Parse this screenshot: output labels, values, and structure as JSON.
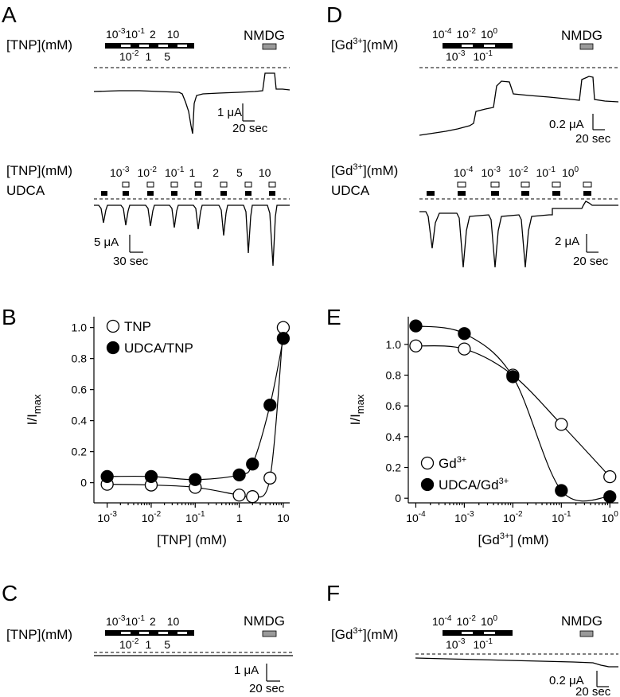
{
  "panels": {
    "A": {
      "letter": "A",
      "label_top": "[TNP](mM)",
      "upper_concs": [
        "10",
        "-3",
        "10",
        "-1",
        "2",
        "10"
      ],
      "lower_concs": [
        "10",
        "-2",
        "1",
        "5"
      ],
      "nmdg": "NMDG",
      "scale_amp": "1 μA",
      "scale_time": "20 sec",
      "label_bottom1": "[TNP](mM)",
      "label_bottom2": "UDCA",
      "bottom_concs": [
        "10-3",
        "10-2",
        "10-1",
        "1",
        "2",
        "5",
        "10"
      ],
      "scale2_amp": "5 μA",
      "scale2_time": "30 sec"
    },
    "D": {
      "letter": "D",
      "label_top": "[Gd3+](mM)",
      "upper_concs": [
        "10-4",
        "10-2",
        "10^0"
      ],
      "lower_concs": [
        "10-3",
        "10-1"
      ],
      "nmdg": "NMDG",
      "scale_amp": "0.2 μA",
      "scale_time": "20 sec",
      "label_bottom1": "[Gd3+](mM)",
      "label_bottom2": "UDCA",
      "bottom_concs": [
        "10-4",
        "10-3",
        "10-2",
        "10-1",
        "10^0"
      ],
      "scale2_amp": "2 μA",
      "scale2_time": "20 sec"
    },
    "C": {
      "letter": "C",
      "label_top": "[TNP](mM)",
      "nmdg": "NMDG",
      "scale_amp": "1 μA",
      "scale_time": "20 sec"
    },
    "F": {
      "letter": "F",
      "label_top": "[Gd3+](mM)",
      "nmdg": "NMDG",
      "scale_amp": "0.2 μA",
      "scale_time": "20 sec"
    },
    "B": {
      "letter": "B"
    },
    "E": {
      "letter": "E"
    }
  },
  "chart_data": [
    {
      "panel": "B",
      "type": "scatter",
      "xlabel": "[TNP] (mM)",
      "ylabel": "I/Imax",
      "xscale": "log",
      "xlim": [
        0.0005,
        14
      ],
      "ylim": [
        -0.13,
        1.07
      ],
      "xticks": [
        "10-3",
        "10-2",
        "10-1",
        "1",
        "10"
      ],
      "yticks": [
        "0",
        "0.2",
        "0.4",
        "0.6",
        "0.8",
        "1.0"
      ],
      "legend_position": "top-left",
      "series": [
        {
          "name": "TNP",
          "marker": "open",
          "x": [
            0.001,
            0.01,
            0.1,
            1,
            2,
            5,
            10
          ],
          "y": [
            -0.01,
            -0.015,
            -0.03,
            -0.08,
            -0.09,
            0.03,
            1.0
          ]
        },
        {
          "name": "UDCA/TNP",
          "marker": "filled",
          "x": [
            0.001,
            0.01,
            0.1,
            1,
            2,
            5,
            10
          ],
          "y": [
            0.04,
            0.04,
            0.02,
            0.05,
            0.12,
            0.5,
            0.93
          ]
        }
      ]
    },
    {
      "panel": "E",
      "type": "scatter",
      "xlabel": "[Gd3+] (mM)",
      "ylabel": "I/Imax",
      "xscale": "log",
      "xlim": [
        7e-05,
        1.5
      ],
      "ylim": [
        -0.03,
        1.18
      ],
      "xticks": [
        "10-4",
        "10-3",
        "10-2",
        "10-1",
        "10^0"
      ],
      "yticks": [
        "0",
        "0.2",
        "0.4",
        "0.6",
        "0.8",
        "1.0"
      ],
      "legend_position": "bottom-left",
      "series": [
        {
          "name": "Gd3+",
          "marker": "open",
          "x": [
            0.0001,
            0.001,
            0.01,
            0.1,
            1
          ],
          "y": [
            0.99,
            0.97,
            0.8,
            0.48,
            0.14
          ]
        },
        {
          "name": "UDCA/Gd3+",
          "marker": "filled",
          "x": [
            0.0001,
            0.001,
            0.01,
            0.1,
            1
          ],
          "y": [
            1.12,
            1.07,
            0.79,
            0.05,
            0.01
          ]
        }
      ]
    }
  ]
}
